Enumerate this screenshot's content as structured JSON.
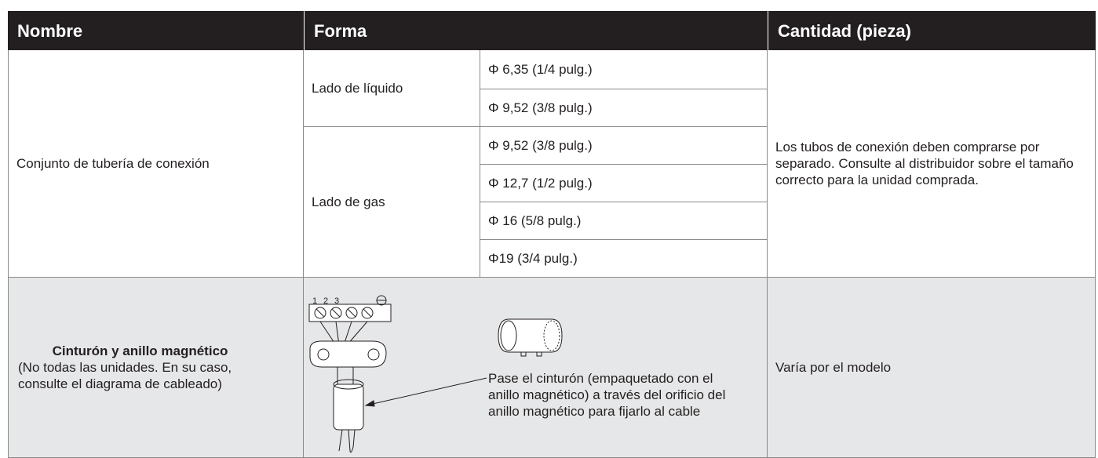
{
  "table": {
    "headers": [
      "Nombre",
      "Forma",
      "Cantidad (pieza)"
    ],
    "rows": [
      {
        "name": "Conjunto de tubería de conexión",
        "groups": [
          {
            "side": "Lado de líquido",
            "sizes": [
              "Φ 6,35 (1/4 pulg.)",
              "Φ 9,52 (3/8 pulg.)"
            ]
          },
          {
            "side": "Lado de gas",
            "sizes": [
              "Φ 9,52 (3/8 pulg.)",
              "Φ 12,7 (1/2 pulg.)",
              "Φ 16 (5/8 pulg.)",
              "Φ19 (3/4 pulg.)"
            ]
          }
        ],
        "quantity": "Los tubos de conexión deben comprarse por separado. Consulte al distribuidor sobre el tamaño correcto para la unidad comprada."
      },
      {
        "name": "Cinturón y anillo magnético",
        "note": "(No todas las unidades. En su caso, consulte el diagrama de cableado)",
        "terminal_labels": [
          "1",
          "2",
          "3"
        ],
        "form": "Pase el cinturón (empaquetado con el anillo magnético) a través del orificio del anillo magnético para fijarlo al cable",
        "quantity": "Varía por el modelo"
      }
    ]
  }
}
